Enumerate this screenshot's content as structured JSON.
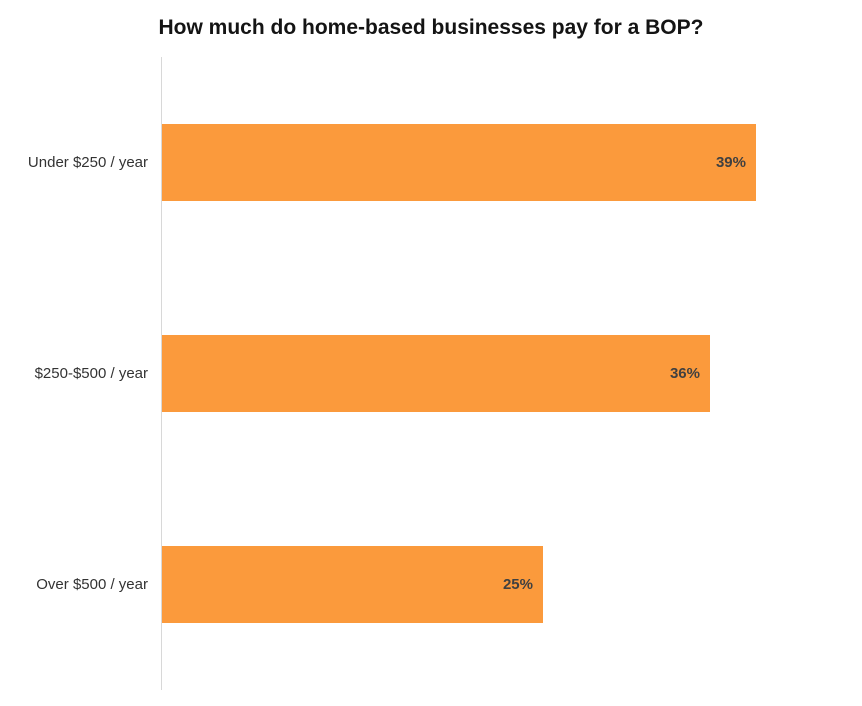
{
  "chart_data": {
    "type": "bar",
    "orientation": "horizontal",
    "title": "How much do home-based businesses pay for a BOP?",
    "categories": [
      "Under $250 / year",
      "$250-$500 / year",
      "Over $500 / year"
    ],
    "values": [
      39,
      36,
      25
    ],
    "value_labels": [
      "39%",
      "36%",
      "25%"
    ],
    "unit": "%",
    "xlabel": "",
    "ylabel": "",
    "xlim": [
      0,
      46
    ],
    "grid": false,
    "legend": false,
    "value_labels_position": "inside-end",
    "colors": {
      "bar": "#fb9a3c",
      "value_label": "#404040",
      "category_label": "#333333",
      "axis_line": "#d8d8d8",
      "title": "#141414",
      "background": "#ffffff"
    }
  }
}
